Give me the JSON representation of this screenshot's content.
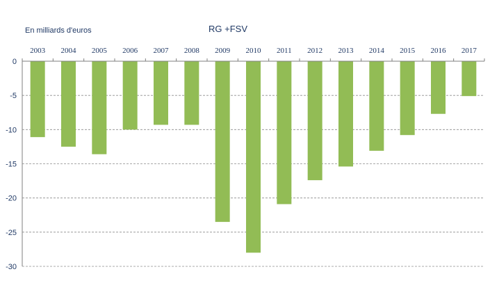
{
  "chart_data": {
    "type": "bar",
    "title": "RG +FSV",
    "unit_label": "En milliards d'euros",
    "categories": [
      "2003",
      "2004",
      "2005",
      "2006",
      "2007",
      "2008",
      "2009",
      "2010",
      "2011",
      "2012",
      "2013",
      "2014",
      "2015",
      "2016",
      "2017"
    ],
    "values": [
      -11.1,
      -12.5,
      -13.6,
      -10.0,
      -9.3,
      -9.3,
      -23.5,
      -28.0,
      -20.9,
      -17.4,
      -15.4,
      -13.1,
      -10.8,
      -7.7,
      -5.1
    ],
    "ylim": [
      -30,
      0
    ],
    "yticks": [
      0,
      -5,
      -10,
      -15,
      -20,
      -25,
      -30
    ],
    "grid": true,
    "x_axis_position": "top",
    "bar_color": "#92bc55"
  }
}
